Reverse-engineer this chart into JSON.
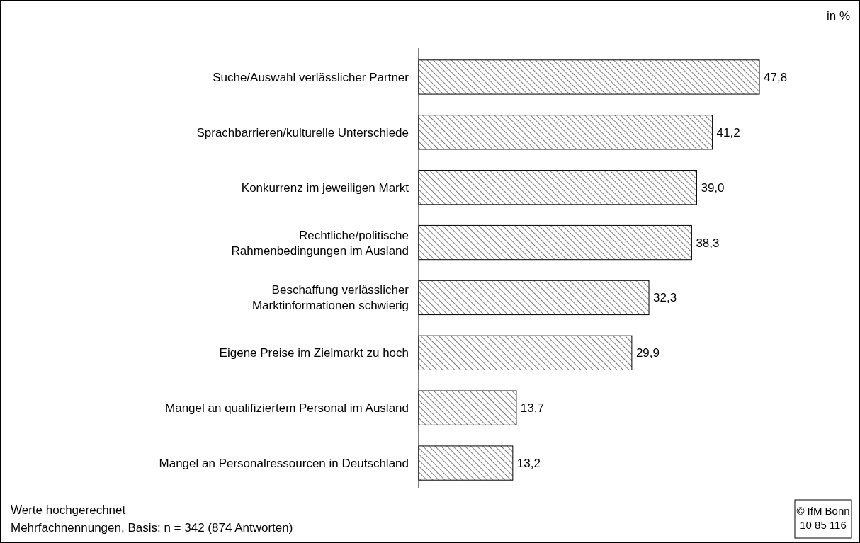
{
  "chart_data": {
    "type": "bar",
    "orientation": "horizontal",
    "categories": [
      "Suche/Auswahl verlässlicher Partner",
      "Sprachbarrieren/kulturelle Unterschiede",
      "Konkurrenz im jeweiligen Markt",
      "Rechtliche/politische\nRahmenbedingungen im Ausland",
      "Beschaffung verlässlicher\nMarktinformationen schwierig",
      "Eigene Preise im Zielmarkt zu hoch",
      "Mangel an qualifiziertem Personal im Ausland",
      "Mangel an Personalressourcen in Deutschland"
    ],
    "values": [
      47.8,
      41.2,
      39.0,
      38.3,
      32.3,
      29.9,
      13.7,
      13.2
    ],
    "value_labels": [
      "47,8",
      "41,2",
      "39,0",
      "38,3",
      "32,3",
      "29,9",
      "13,7",
      "13,2"
    ],
    "color": "#000000",
    "annotations": [
      "in %",
      "Werte hochgerechnet",
      "Mehrfachnennungen, Basis: n = 342 (874 Antworten)",
      "© IfM Bonn\n10 85 116"
    ]
  }
}
